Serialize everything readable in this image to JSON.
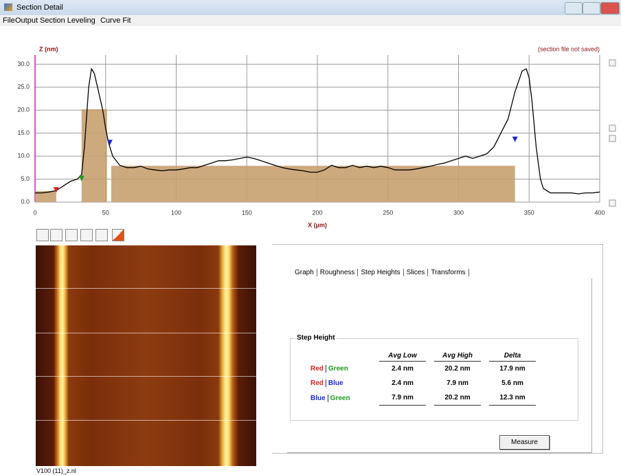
{
  "window": {
    "title": "Section Detail"
  },
  "menu": [
    "File",
    "Output",
    "Section Leveling",
    "Curve Fit"
  ],
  "chart_data": {
    "type": "line",
    "y_label": "Z (nm)",
    "x_label": "X (µm)",
    "note": "(section file not saved)",
    "color": "#000000",
    "grid": true,
    "x": [
      0,
      5,
      10,
      15,
      20,
      25,
      30,
      33,
      35,
      38,
      40,
      42,
      45,
      48,
      50,
      52,
      55,
      60,
      65,
      70,
      75,
      80,
      85,
      90,
      95,
      100,
      105,
      110,
      115,
      120,
      125,
      130,
      135,
      140,
      145,
      150,
      155,
      160,
      165,
      170,
      175,
      180,
      185,
      190,
      195,
      200,
      205,
      210,
      215,
      220,
      225,
      230,
      235,
      240,
      245,
      250,
      255,
      260,
      265,
      270,
      275,
      280,
      285,
      290,
      295,
      300,
      305,
      310,
      315,
      320,
      325,
      330,
      335,
      340,
      345,
      348,
      350,
      352,
      355,
      358,
      360,
      365,
      370,
      375,
      380,
      385,
      390,
      395,
      400
    ],
    "values": [
      2,
      2,
      2.2,
      2.5,
      3.5,
      4.5,
      5,
      6,
      12,
      25,
      29,
      28,
      24,
      20,
      16,
      13,
      10,
      8,
      7.5,
      7.5,
      7.8,
      7.2,
      7,
      6.8,
      7,
      7,
      7.2,
      7.5,
      7.5,
      8,
      8.5,
      9,
      9,
      9.2,
      9.5,
      9.8,
      9.5,
      9,
      8.5,
      8,
      7.5,
      7.2,
      7,
      6.8,
      6.5,
      6.5,
      7,
      8,
      7.5,
      7.5,
      8,
      7.5,
      7.8,
      7.5,
      7.8,
      7.5,
      7,
      7,
      7,
      7.2,
      7.5,
      7.8,
      8.2,
      8.5,
      9,
      9.5,
      10,
      9.5,
      10,
      10.5,
      12,
      15,
      18,
      24,
      28.5,
      29,
      27,
      22,
      12,
      5,
      3,
      2,
      2,
      2,
      2,
      1.8,
      2,
      2,
      2.2
    ],
    "regions": [
      {
        "x0": 0,
        "x1": 15,
        "z": 2.4,
        "color": "#c8a070"
      },
      {
        "x0": 33,
        "x1": 51,
        "z": 20.2,
        "color": "#c8a070"
      },
      {
        "x0": 54,
        "x1": 340,
        "z": 7.9,
        "color": "#c8a070"
      }
    ],
    "cursors": [
      {
        "x": 15,
        "z": 2.5,
        "color": "#d42020"
      },
      {
        "x": 33,
        "z": 5,
        "color": "#1a9a1a"
      },
      {
        "x": 53,
        "z": 12.8,
        "color": "#1b2bd0"
      },
      {
        "x": 340,
        "z": 13.5,
        "color": "#1b2bd0"
      }
    ],
    "xlim": [
      0,
      400
    ],
    "ylim": [
      0,
      32
    ],
    "xticks": [
      0,
      50,
      100,
      150,
      200,
      250,
      300,
      350,
      400
    ],
    "yticks": [
      {
        "value": 0,
        "label": "0.0"
      },
      {
        "value": 5,
        "label": "5.0"
      },
      {
        "value": 10,
        "label": "10.0"
      },
      {
        "value": 15,
        "label": "15.0"
      },
      {
        "value": 20,
        "label": "20.0"
      },
      {
        "value": 25,
        "label": "25.0"
      },
      {
        "value": 30,
        "label": "30.0"
      }
    ]
  },
  "image_caption": "V100 (11)_z.nl",
  "tabs": [
    "Graph",
    "Roughness",
    "Step Heights",
    "Slices",
    "Transforms"
  ],
  "step_height": {
    "title": "Step Height",
    "columns": [
      "Avg Low",
      "Avg High",
      "Delta"
    ],
    "rows": [
      {
        "pair": [
          {
            "text": "Red",
            "color": "#d42020"
          },
          {
            "text": "Green",
            "color": "#1a9a1a"
          }
        ],
        "cells": [
          "2.4 nm",
          "20.2 nm",
          "17.9 nm"
        ]
      },
      {
        "pair": [
          {
            "text": "Red",
            "color": "#d42020"
          },
          {
            "text": "Blue",
            "color": "#1b2bd0"
          }
        ],
        "cells": [
          "2.4 nm",
          "7.9 nm",
          "5.6 nm"
        ]
      },
      {
        "pair": [
          {
            "text": "Blue",
            "color": "#1b2bd0"
          },
          {
            "text": "Green",
            "color": "#1a9a1a"
          }
        ],
        "cells": [
          "7.9 nm",
          "20.2 nm",
          "12.3 nm"
        ]
      }
    ]
  },
  "button": "Measure"
}
